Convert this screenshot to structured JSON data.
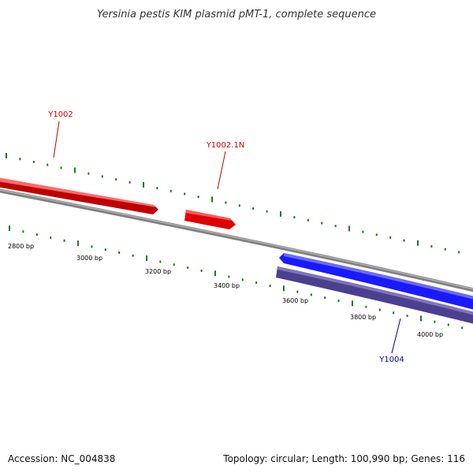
{
  "title": "Yersinia pestis KIM plasmid pMT-1, complete sequence",
  "footer": {
    "accession": "Accession: NC_004838",
    "summary": "Topology: circular; Length: 100,990 bp; Genes: 116"
  },
  "colors": {
    "forward_gene": "#ff2020",
    "reverse_gene": "#1a1aff",
    "reverse_gene_dark": "#4b3f8f",
    "backbone": "#808080",
    "tick": "#1e7a1e"
  },
  "genes": [
    {
      "id": "y1002",
      "label": "Y1002",
      "color": "#cc0000"
    },
    {
      "id": "y1002-1n",
      "label": "Y1002.1N",
      "color": "#cc0000"
    },
    {
      "id": "y1004",
      "label": "Y1004",
      "color": "#0000aa"
    }
  ],
  "ticks": [
    {
      "id": "t2800",
      "label": "2800 bp"
    },
    {
      "id": "t3000",
      "label": "3000 bp"
    },
    {
      "id": "t3200",
      "label": "3200 bp"
    },
    {
      "id": "t3400",
      "label": "3400 bp"
    },
    {
      "id": "t3600",
      "label": "3600 bp"
    },
    {
      "id": "t3800",
      "label": "3800 bp"
    },
    {
      "id": "t4000",
      "label": "4000 bp"
    }
  ]
}
